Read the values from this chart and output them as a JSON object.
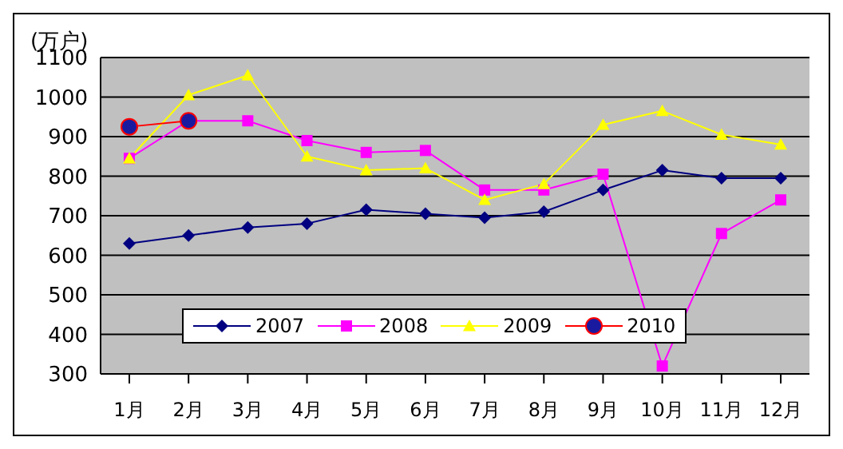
{
  "chart_data": {
    "type": "line",
    "ylabel": "(万户)",
    "categories": [
      "1月",
      "2月",
      "3月",
      "4月",
      "5月",
      "6月",
      "7月",
      "8月",
      "9月",
      "10月",
      "11月",
      "12月"
    ],
    "series": [
      {
        "name": "2007",
        "color": "#000080",
        "marker": "diamond",
        "values": [
          630,
          650,
          670,
          680,
          715,
          705,
          695,
          710,
          765,
          815,
          795,
          795
        ]
      },
      {
        "name": "2008",
        "color": "#ff00ff",
        "marker": "square",
        "values": [
          845,
          940,
          940,
          890,
          860,
          865,
          765,
          765,
          805,
          320,
          655,
          740
        ]
      },
      {
        "name": "2009",
        "color": "#ffff00",
        "marker": "triangle",
        "values": [
          845,
          1005,
          1055,
          850,
          815,
          820,
          740,
          780,
          930,
          965,
          905,
          880
        ]
      },
      {
        "name": "2010",
        "color": "#ff0000",
        "marker": "circle",
        "values": [
          925,
          940,
          null,
          null,
          null,
          null,
          null,
          null,
          null,
          null,
          null,
          null
        ]
      }
    ],
    "ylim": [
      300,
      1100
    ],
    "yticks": [
      300,
      400,
      500,
      600,
      700,
      800,
      900,
      1000,
      1100
    ],
    "grid": "y",
    "legend": "bottom left"
  }
}
